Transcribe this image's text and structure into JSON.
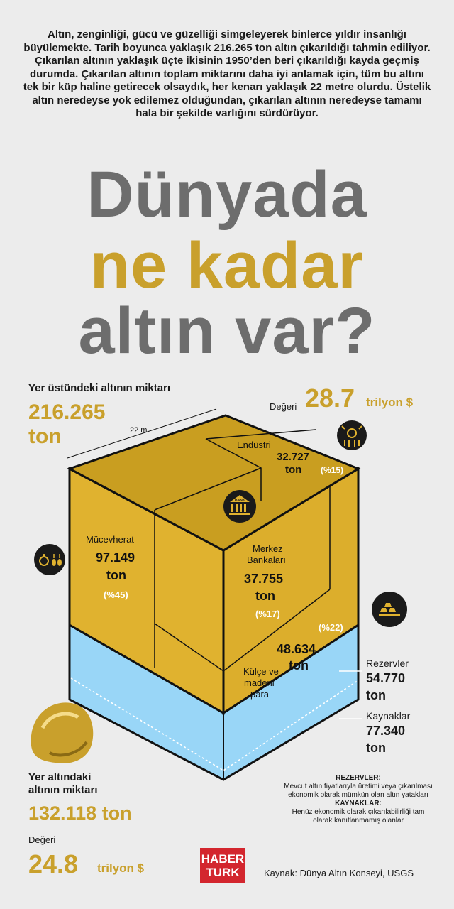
{
  "intro": "Altın, zenginliği, gücü ve güzelliği simgeleyerek binlerce yıldır insanlığı büyülemekte. Tarih boyunca yaklaşık 216.265 ton altın çıkarıldığı tahmin ediliyor. Çıkarılan altının yaklaşık üçte ikisinin 1950’den beri çıkarıldığı kayda geçmiş durumda. Çıkarılan altının toplam miktarını daha iyi anlamak için, tüm bu altını tek bir küp haline getirecek olsaydık, her kenarı yaklaşık 22 metre olurdu. Üstelik altın neredeyse yok edilemez olduğundan, çıkarılan altının neredeyse tamamı hala bir şekilde varlığını sürdürüyor.",
  "title": {
    "line1": "Dünyada",
    "line2": "ne kadar",
    "line3": "altın var?"
  },
  "above": {
    "label": "Yer üstündeki altının miktarı",
    "amount": "216.265",
    "unit": "ton",
    "value_label": "Değeri",
    "value": "28.7",
    "value_unit": "trilyon $",
    "edge": "22 m."
  },
  "segments": {
    "industry": {
      "name": "Endüstri",
      "amount": "32.727",
      "unit": "ton",
      "pct": "(%15)"
    },
    "jewelry": {
      "name": "Mücevherat",
      "amount": "97.149",
      "unit": "ton",
      "pct": "(%45)"
    },
    "central": {
      "name1": "Merkez",
      "name2": "Bankaları",
      "amount": "37.755",
      "unit": "ton",
      "pct": "(%17)",
      "bank_text": "BANK"
    },
    "bullion": {
      "name1": "Külçe ve",
      "name2": "madeni",
      "name3": "para",
      "amount": "48.634",
      "unit": "ton",
      "pct": "(%22)"
    }
  },
  "below": {
    "label1": "Yer altındaki",
    "label2": "altının miktarı",
    "amount": "132.118 ton",
    "value_label": "Değeri",
    "value": "24.8",
    "value_unit": "trilyon $",
    "reserves": {
      "name": "Rezervler",
      "amount": "54.770",
      "unit": "ton"
    },
    "resources": {
      "name": "Kaynaklar",
      "amount": "77.340",
      "unit": "ton"
    }
  },
  "notes": {
    "reserves_title": "REZERVLER:",
    "reserves_text": "Mevcut altın fiyatlarıyla üretimi veya çıkarılması ekonomik olarak mümkün olan altın yatakları",
    "resources_title": "KAYNAKLAR:",
    "resources_text": "Henüz ekonomik olarak çıkarılabilirliği tam olarak kanıtlanmamış olanlar"
  },
  "logo": {
    "line1": "HABER",
    "line2": "TURK"
  },
  "source": "Kaynak: Dünya Altın Konseyi, USGS",
  "colors": {
    "gold": "#c9a02c",
    "gold_face": "#e0b22f",
    "gold_top": "#c99e20",
    "blue": "#99d6f7",
    "dark": "#1a1a1a",
    "grey_title": "#6d6d6d",
    "logo_red": "#d3262e"
  },
  "icons": [
    "circuit-icon",
    "bank-icon",
    "jewelry-icon",
    "gold-bars-icon",
    "gold-nugget-icon"
  ]
}
